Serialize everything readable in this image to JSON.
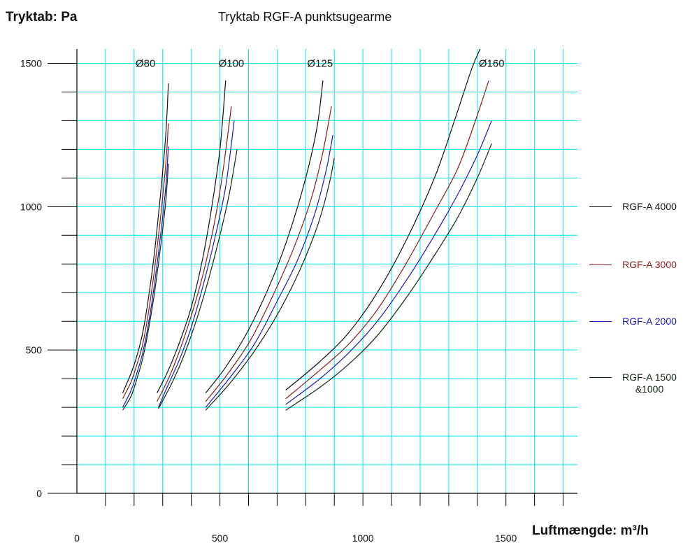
{
  "ylabel": "Tryktab: Pa",
  "title": "Tryktab RGF-A punktsugearme",
  "xlabel": "Luftmængde: m³/h",
  "colors": {
    "grid": "#00e5ee",
    "axis": "#000000",
    "rgf4000": "#111111",
    "rgf3000": "#8b1a1a",
    "rgf2000": "#1a1ab4",
    "rgf1500": "#0f2a0f"
  },
  "legend": [
    {
      "label": "RGF-A 4000",
      "color": "#111111"
    },
    {
      "label": "RGF-A 3000",
      "color": "#8b1a1a"
    },
    {
      "label": "RGF-A 2000",
      "color": "#1a1ab4"
    },
    {
      "label": "RGF-A 1500 &1000",
      "color": "#0f2a0f"
    }
  ],
  "chart_data": {
    "type": "line",
    "title": "Tryktab RGF-A punktsugearme",
    "xlabel": "Luftmængde: m³/h",
    "ylabel": "Tryktab: Pa",
    "xlim": [
      0,
      1750
    ],
    "ylim": [
      0,
      1550
    ],
    "x_ticks": [
      0,
      500,
      1000,
      1500
    ],
    "y_ticks": [
      0,
      500,
      1000,
      1500
    ],
    "grid": true,
    "legend_position": "right",
    "diameter_labels": [
      {
        "text": "Ø80",
        "x": 240,
        "y": 1500
      },
      {
        "text": "Ø100",
        "x": 540,
        "y": 1500
      },
      {
        "text": "Ø125",
        "x": 850,
        "y": 1500
      },
      {
        "text": "Ø160",
        "x": 1450,
        "y": 1500
      }
    ],
    "series": [
      {
        "name": "RGF-A 4000",
        "group": "Ø80",
        "color": "#111111",
        "x": [
          160,
          190,
          210,
          230,
          250,
          270,
          290,
          310,
          320
        ],
        "y": [
          350,
          420,
          480,
          560,
          680,
          830,
          1020,
          1240,
          1430
        ]
      },
      {
        "name": "RGF-A 3000",
        "group": "Ø80",
        "color": "#8b1a1a",
        "x": [
          160,
          190,
          210,
          230,
          250,
          270,
          290,
          310,
          320
        ],
        "y": [
          330,
          390,
          450,
          520,
          630,
          770,
          940,
          1140,
          1290
        ]
      },
      {
        "name": "RGF-A 2000",
        "group": "Ø80",
        "color": "#1a1ab4",
        "x": [
          160,
          190,
          210,
          230,
          250,
          270,
          290,
          310,
          320
        ],
        "y": [
          300,
          360,
          420,
          490,
          590,
          720,
          880,
          1060,
          1210
        ]
      },
      {
        "name": "RGF-A 1500 &1000",
        "group": "Ø80",
        "color": "#0f2a0f",
        "x": [
          160,
          190,
          210,
          230,
          250,
          270,
          290,
          310,
          320
        ],
        "y": [
          290,
          340,
          400,
          470,
          570,
          690,
          840,
          1010,
          1150
        ]
      },
      {
        "name": "RGF-A 4000",
        "group": "Ø100",
        "color": "#111111",
        "x": [
          280,
          320,
          360,
          400,
          440,
          470,
          500,
          520
        ],
        "y": [
          350,
          430,
          530,
          650,
          820,
          990,
          1200,
          1440
        ]
      },
      {
        "name": "RGF-A 3000",
        "group": "Ø100",
        "color": "#8b1a1a",
        "x": [
          280,
          320,
          360,
          400,
          440,
          480,
          510,
          540
        ],
        "y": [
          320,
          400,
          500,
          620,
          760,
          940,
          1120,
          1350
        ]
      },
      {
        "name": "RGF-A 2000",
        "group": "Ø100",
        "color": "#1a1ab4",
        "x": [
          285,
          320,
          360,
          400,
          440,
          480,
          520,
          550
        ],
        "y": [
          300,
          380,
          470,
          580,
          720,
          880,
          1070,
          1300
        ]
      },
      {
        "name": "RGF-A 1500 &1000",
        "group": "Ø100",
        "color": "#0f2a0f",
        "x": [
          285,
          330,
          370,
          410,
          450,
          490,
          530,
          560
        ],
        "y": [
          295,
          380,
          470,
          580,
          710,
          860,
          1030,
          1200
        ]
      },
      {
        "name": "RGF-A 4000",
        "group": "Ø125",
        "color": "#111111",
        "x": [
          450,
          520,
          600,
          680,
          740,
          800,
          840,
          860
        ],
        "y": [
          350,
          440,
          570,
          740,
          900,
          1100,
          1280,
          1440
        ]
      },
      {
        "name": "RGF-A 3000",
        "group": "Ø125",
        "color": "#8b1a1a",
        "x": [
          450,
          530,
          610,
          690,
          760,
          820,
          860,
          890
        ],
        "y": [
          320,
          420,
          540,
          700,
          860,
          1030,
          1190,
          1350
        ]
      },
      {
        "name": "RGF-A 2000",
        "group": "Ø125",
        "color": "#1a1ab4",
        "x": [
          450,
          540,
          620,
          700,
          770,
          830,
          870,
          895
        ],
        "y": [
          300,
          410,
          520,
          670,
          810,
          970,
          1120,
          1250
        ]
      },
      {
        "name": "RGF-A 1500 &1000",
        "group": "Ø125",
        "color": "#0f2a0f",
        "x": [
          450,
          540,
          630,
          710,
          780,
          840,
          880,
          900
        ],
        "y": [
          290,
          390,
          510,
          640,
          780,
          930,
          1070,
          1170
        ]
      },
      {
        "name": "RGF-A 4000",
        "group": "Ø160",
        "color": "#111111",
        "x": [
          730,
          850,
          950,
          1050,
          1150,
          1250,
          1320,
          1380,
          1410
        ],
        "y": [
          360,
          460,
          560,
          700,
          880,
          1100,
          1300,
          1480,
          1550
        ]
      },
      {
        "name": "RGF-A 3000",
        "group": "Ø160",
        "color": "#8b1a1a",
        "x": [
          730,
          850,
          950,
          1050,
          1150,
          1250,
          1330,
          1390,
          1440
        ],
        "y": [
          330,
          430,
          520,
          640,
          800,
          980,
          1130,
          1290,
          1440
        ]
      },
      {
        "name": "RGF-A 2000",
        "group": "Ø160",
        "color": "#1a1ab4",
        "x": [
          730,
          850,
          950,
          1050,
          1150,
          1250,
          1330,
          1400,
          1450
        ],
        "y": [
          310,
          400,
          490,
          600,
          740,
          900,
          1040,
          1180,
          1300
        ]
      },
      {
        "name": "RGF-A 1500 &1000",
        "group": "Ø160",
        "color": "#0f2a0f",
        "x": [
          730,
          850,
          950,
          1050,
          1150,
          1250,
          1330,
          1400,
          1450
        ],
        "y": [
          290,
          370,
          450,
          550,
          680,
          830,
          960,
          1100,
          1220
        ]
      }
    ]
  }
}
